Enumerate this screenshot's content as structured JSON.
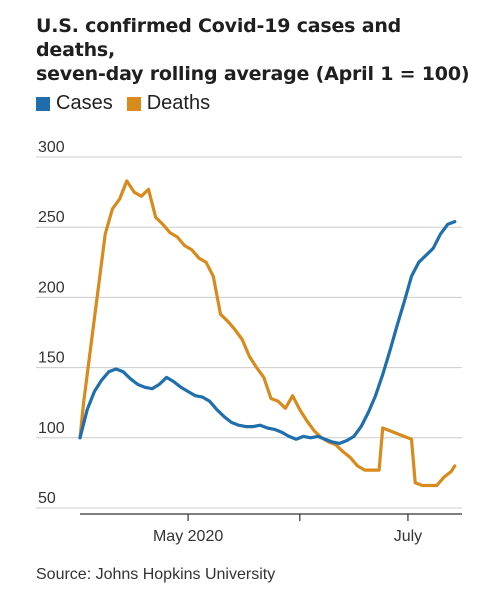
{
  "title_lines": [
    "U.S. confirmed Covid-19 cases and deaths,",
    "seven-day rolling average (April 1 = 100)"
  ],
  "source": "Source: Johns Hopkins University",
  "colors": {
    "cases": "#1f6fad",
    "deaths": "#d98a1c",
    "grid": "#cccccc",
    "axis": "#333333"
  },
  "chart_data": {
    "type": "line",
    "title": "U.S. confirmed Covid-19 cases and deaths, seven-day rolling average (April 1 = 100)",
    "xlabel": "",
    "ylabel": "",
    "x_range": [
      "2020-04-01",
      "2020-07-16"
    ],
    "ylim": [
      50,
      300
    ],
    "yticks": [
      50,
      100,
      150,
      200,
      250,
      300
    ],
    "xticks": [
      {
        "date": "2020-05-01",
        "label": "May 2020"
      },
      {
        "date": "2020-06-01",
        "label": ""
      },
      {
        "date": "2020-07-01",
        "label": "July"
      }
    ],
    "grid": true,
    "legend_placement": "top-left",
    "series": [
      {
        "name": "Cases",
        "color": "#1f6fad",
        "points": [
          [
            "2020-04-01",
            100
          ],
          [
            "2020-04-03",
            120
          ],
          [
            "2020-04-05",
            133
          ],
          [
            "2020-04-07",
            141
          ],
          [
            "2020-04-09",
            147
          ],
          [
            "2020-04-11",
            149
          ],
          [
            "2020-04-13",
            147
          ],
          [
            "2020-04-15",
            142
          ],
          [
            "2020-04-17",
            138
          ],
          [
            "2020-04-19",
            136
          ],
          [
            "2020-04-21",
            135
          ],
          [
            "2020-04-23",
            138
          ],
          [
            "2020-04-25",
            143
          ],
          [
            "2020-04-27",
            140
          ],
          [
            "2020-04-29",
            136
          ],
          [
            "2020-05-01",
            133
          ],
          [
            "2020-05-03",
            130
          ],
          [
            "2020-05-05",
            129
          ],
          [
            "2020-05-07",
            126
          ],
          [
            "2020-05-09",
            120
          ],
          [
            "2020-05-11",
            115
          ],
          [
            "2020-05-13",
            111
          ],
          [
            "2020-05-15",
            109
          ],
          [
            "2020-05-17",
            108
          ],
          [
            "2020-05-19",
            108
          ],
          [
            "2020-05-21",
            109
          ],
          [
            "2020-05-23",
            107
          ],
          [
            "2020-05-25",
            106
          ],
          [
            "2020-05-27",
            104
          ],
          [
            "2020-05-29",
            101
          ],
          [
            "2020-05-31",
            99
          ],
          [
            "2020-06-02",
            101
          ],
          [
            "2020-06-04",
            100
          ],
          [
            "2020-06-06",
            101
          ],
          [
            "2020-06-08",
            99
          ],
          [
            "2020-06-10",
            97
          ],
          [
            "2020-06-12",
            96
          ],
          [
            "2020-06-14",
            98
          ],
          [
            "2020-06-16",
            101
          ],
          [
            "2020-06-18",
            108
          ],
          [
            "2020-06-20",
            118
          ],
          [
            "2020-06-22",
            130
          ],
          [
            "2020-06-24",
            145
          ],
          [
            "2020-06-26",
            162
          ],
          [
            "2020-06-28",
            180
          ],
          [
            "2020-06-30",
            197
          ],
          [
            "2020-07-02",
            215
          ],
          [
            "2020-07-04",
            225
          ],
          [
            "2020-07-06",
            230
          ],
          [
            "2020-07-08",
            235
          ],
          [
            "2020-07-10",
            245
          ],
          [
            "2020-07-12",
            252
          ],
          [
            "2020-07-14",
            254
          ]
        ]
      },
      {
        "name": "Deaths",
        "color": "#d98a1c",
        "points": [
          [
            "2020-04-01",
            100
          ],
          [
            "2020-04-02",
            125
          ],
          [
            "2020-04-04",
            165
          ],
          [
            "2020-04-06",
            205
          ],
          [
            "2020-04-08",
            245
          ],
          [
            "2020-04-10",
            263
          ],
          [
            "2020-04-12",
            270
          ],
          [
            "2020-04-14",
            283
          ],
          [
            "2020-04-16",
            275
          ],
          [
            "2020-04-18",
            272
          ],
          [
            "2020-04-20",
            277
          ],
          [
            "2020-04-22",
            257
          ],
          [
            "2020-04-24",
            252
          ],
          [
            "2020-04-26",
            246
          ],
          [
            "2020-04-28",
            243
          ],
          [
            "2020-04-30",
            237
          ],
          [
            "2020-05-02",
            234
          ],
          [
            "2020-05-04",
            228
          ],
          [
            "2020-05-06",
            225
          ],
          [
            "2020-05-08",
            215
          ],
          [
            "2020-05-10",
            188
          ],
          [
            "2020-05-12",
            183
          ],
          [
            "2020-05-14",
            177
          ],
          [
            "2020-05-16",
            170
          ],
          [
            "2020-05-18",
            158
          ],
          [
            "2020-05-20",
            150
          ],
          [
            "2020-05-22",
            143
          ],
          [
            "2020-05-24",
            128
          ],
          [
            "2020-05-26",
            126
          ],
          [
            "2020-05-28",
            121
          ],
          [
            "2020-05-30",
            130
          ],
          [
            "2020-06-01",
            120
          ],
          [
            "2020-06-03",
            112
          ],
          [
            "2020-06-05",
            105
          ],
          [
            "2020-06-07",
            100
          ],
          [
            "2020-06-09",
            97
          ],
          [
            "2020-06-11",
            95
          ],
          [
            "2020-06-13",
            90
          ],
          [
            "2020-06-15",
            86
          ],
          [
            "2020-06-17",
            80
          ],
          [
            "2020-06-19",
            77
          ],
          [
            "2020-06-21",
            77
          ],
          [
            "2020-06-23",
            77
          ],
          [
            "2020-06-24",
            107
          ],
          [
            "2020-06-26",
            105
          ],
          [
            "2020-06-28",
            103
          ],
          [
            "2020-06-30",
            101
          ],
          [
            "2020-07-02",
            99
          ],
          [
            "2020-07-03",
            68
          ],
          [
            "2020-07-05",
            66
          ],
          [
            "2020-07-07",
            66
          ],
          [
            "2020-07-09",
            66
          ],
          [
            "2020-07-11",
            72
          ],
          [
            "2020-07-13",
            76
          ],
          [
            "2020-07-14",
            80
          ]
        ]
      }
    ]
  }
}
